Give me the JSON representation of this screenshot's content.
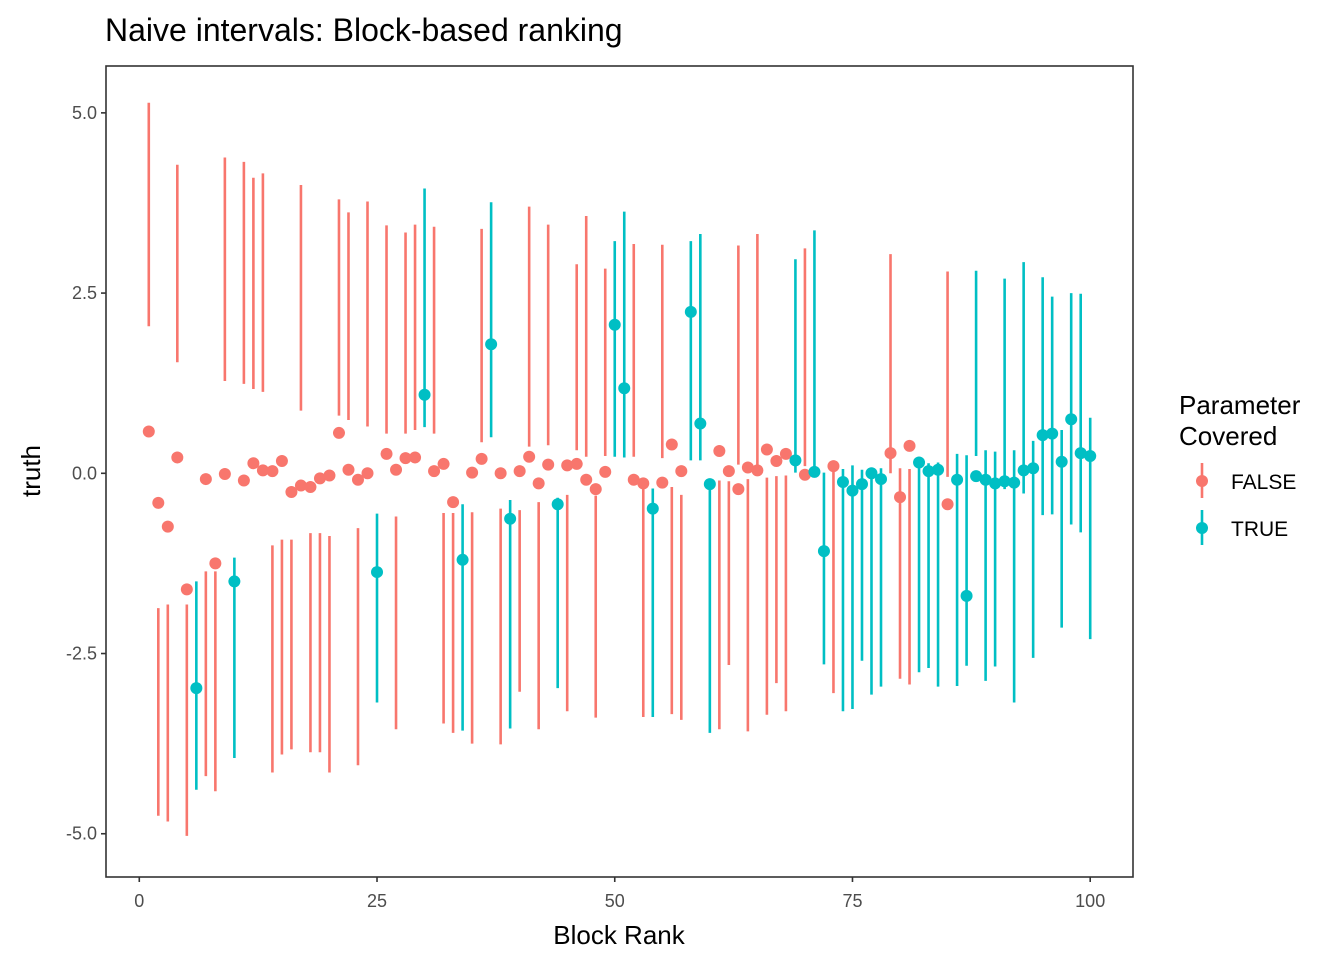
{
  "chart_data": {
    "type": "scatter",
    "subtype": "pointrange",
    "title": "Naive intervals: Block-based ranking",
    "xlabel": "Block Rank",
    "ylabel": "truth",
    "xlim": [
      -3.5,
      104.5
    ],
    "ylim": [
      -5.6,
      5.65
    ],
    "xticks": [
      0,
      25,
      50,
      75,
      100
    ],
    "xtick_labels": [
      "0",
      "25",
      "50",
      "75",
      "100"
    ],
    "yticks": [
      -5.0,
      -2.5,
      0.0,
      2.5,
      5.0
    ],
    "ytick_labels": [
      "-5.0",
      "-2.5",
      "0.0",
      "2.5",
      "5.0"
    ],
    "grid": false,
    "legend": {
      "title_lines": [
        "Parameter",
        "Covered"
      ],
      "placement": "right",
      "entries": [
        {
          "label": "FALSE",
          "color": "#F8766D"
        },
        {
          "label": "TRUE",
          "color": "#00BFC4"
        }
      ]
    },
    "colors": {
      "FALSE": "#F8766D",
      "TRUE": "#00BFC4"
    },
    "columns": [
      "rank",
      "truth",
      "lower",
      "upper",
      "covered"
    ],
    "points": [
      [
        1,
        0.58,
        2.04,
        5.14,
        false
      ],
      [
        2,
        -0.41,
        -4.75,
        -1.87,
        false
      ],
      [
        3,
        -0.74,
        -4.83,
        -1.82,
        false
      ],
      [
        4,
        0.22,
        1.54,
        4.28,
        false
      ],
      [
        5,
        -1.61,
        -5.03,
        -1.82,
        false
      ],
      [
        6,
        -2.98,
        -4.39,
        -1.5,
        true
      ],
      [
        7,
        -0.08,
        -4.2,
        -1.36,
        false
      ],
      [
        8,
        -1.25,
        -4.41,
        -1.36,
        false
      ],
      [
        9,
        -0.01,
        1.28,
        4.38,
        false
      ],
      [
        10,
        -1.5,
        -3.95,
        -1.17,
        true
      ],
      [
        11,
        -0.1,
        1.24,
        4.32,
        false
      ],
      [
        12,
        0.14,
        1.17,
        4.1,
        false
      ],
      [
        13,
        0.04,
        1.13,
        4.16,
        false
      ],
      [
        14,
        0.03,
        -4.15,
        -1.0,
        false
      ],
      [
        15,
        0.17,
        -3.9,
        -0.92,
        false
      ],
      [
        16,
        -0.26,
        -3.83,
        -0.92,
        false
      ],
      [
        17,
        -0.17,
        0.87,
        4.0,
        false
      ],
      [
        18,
        -0.19,
        -3.87,
        -0.83,
        false
      ],
      [
        19,
        -0.07,
        -3.87,
        -0.83,
        false
      ],
      [
        20,
        -0.03,
        -4.15,
        -0.87,
        false
      ],
      [
        21,
        0.56,
        0.8,
        3.8,
        false
      ],
      [
        22,
        0.05,
        0.74,
        3.62,
        false
      ],
      [
        23,
        -0.09,
        -4.05,
        -0.76,
        false
      ],
      [
        24,
        0.0,
        0.65,
        3.77,
        false
      ],
      [
        25,
        -1.37,
        -3.18,
        -0.56,
        true
      ],
      [
        26,
        0.27,
        0.55,
        3.44,
        false
      ],
      [
        27,
        0.05,
        -3.55,
        -0.6,
        false
      ],
      [
        28,
        0.21,
        0.55,
        3.34,
        false
      ],
      [
        29,
        0.22,
        0.6,
        3.45,
        false
      ],
      [
        30,
        1.09,
        0.64,
        3.95,
        true
      ],
      [
        31,
        0.03,
        0.55,
        3.42,
        false
      ],
      [
        32,
        0.13,
        -3.47,
        -0.55,
        false
      ],
      [
        33,
        -0.4,
        -3.6,
        -0.55,
        false
      ],
      [
        34,
        -1.2,
        -3.57,
        -0.43,
        true
      ],
      [
        35,
        0.01,
        -3.75,
        -0.54,
        false
      ],
      [
        36,
        0.2,
        0.43,
        3.39,
        false
      ],
      [
        37,
        1.79,
        0.5,
        3.76,
        true
      ],
      [
        38,
        0.0,
        -3.76,
        -0.49,
        false
      ],
      [
        39,
        -0.63,
        -3.54,
        -0.37,
        true
      ],
      [
        40,
        0.03,
        -3.03,
        -0.51,
        false
      ],
      [
        41,
        0.23,
        0.37,
        3.7,
        false
      ],
      [
        42,
        -0.14,
        -3.55,
        -0.4,
        false
      ],
      [
        43,
        0.12,
        0.39,
        3.45,
        false
      ],
      [
        44,
        -0.43,
        -2.98,
        -0.34,
        true
      ],
      [
        45,
        0.11,
        -3.3,
        -0.3,
        false
      ],
      [
        46,
        0.13,
        0.32,
        2.9,
        false
      ],
      [
        47,
        -0.09,
        0.23,
        3.57,
        false
      ],
      [
        48,
        -0.22,
        -3.39,
        -0.31,
        false
      ],
      [
        49,
        0.02,
        0.24,
        2.84,
        false
      ],
      [
        50,
        2.06,
        0.23,
        3.22,
        true
      ],
      [
        51,
        1.18,
        0.22,
        3.63,
        true
      ],
      [
        52,
        -0.09,
        0.23,
        3.18,
        false
      ],
      [
        53,
        -0.14,
        -3.38,
        -0.2,
        false
      ],
      [
        54,
        -0.49,
        -3.38,
        -0.21,
        true
      ],
      [
        55,
        -0.13,
        0.21,
        3.17,
        false
      ],
      [
        56,
        0.4,
        -3.34,
        -0.19,
        false
      ],
      [
        57,
        0.03,
        -3.42,
        -0.3,
        false
      ],
      [
        58,
        2.24,
        0.18,
        3.22,
        true
      ],
      [
        59,
        0.69,
        0.18,
        3.32,
        true
      ],
      [
        60,
        -0.15,
        -3.6,
        -0.12,
        true
      ],
      [
        61,
        0.31,
        -3.55,
        -0.1,
        false
      ],
      [
        62,
        0.03,
        -2.66,
        -0.11,
        false
      ],
      [
        63,
        -0.22,
        0.12,
        3.16,
        false
      ],
      [
        64,
        0.08,
        -3.58,
        -0.08,
        false
      ],
      [
        65,
        0.04,
        0.04,
        3.32,
        false
      ],
      [
        66,
        0.33,
        -3.35,
        -0.06,
        false
      ],
      [
        67,
        0.17,
        -2.91,
        -0.04,
        false
      ],
      [
        68,
        0.27,
        -3.3,
        -0.03,
        false
      ],
      [
        69,
        0.18,
        0.01,
        2.97,
        true
      ],
      [
        70,
        -0.02,
        0.1,
        3.12,
        false
      ],
      [
        71,
        0.02,
        -0.01,
        3.37,
        true
      ],
      [
        72,
        -1.08,
        -2.65,
        0.01,
        true
      ],
      [
        73,
        0.1,
        -3.05,
        0.08,
        false
      ],
      [
        74,
        -0.12,
        -3.3,
        0.06,
        true
      ],
      [
        75,
        -0.24,
        -3.27,
        0.11,
        true
      ],
      [
        76,
        -0.15,
        -2.6,
        0.05,
        true
      ],
      [
        77,
        0.0,
        -3.07,
        0.08,
        true
      ],
      [
        78,
        -0.08,
        -2.96,
        0.07,
        true
      ],
      [
        79,
        0.28,
        0.0,
        3.04,
        false
      ],
      [
        80,
        -0.33,
        -2.85,
        0.07,
        false
      ],
      [
        81,
        0.38,
        -2.93,
        0.06,
        false
      ],
      [
        82,
        0.15,
        -2.76,
        0.15,
        true
      ],
      [
        83,
        0.03,
        -2.7,
        0.14,
        true
      ],
      [
        84,
        0.05,
        -2.96,
        0.15,
        true
      ],
      [
        85,
        -0.43,
        -0.05,
        2.8,
        false
      ],
      [
        86,
        -0.09,
        -2.95,
        0.27,
        true
      ],
      [
        87,
        -1.7,
        -2.67,
        0.25,
        true
      ],
      [
        88,
        -0.04,
        0.24,
        2.81,
        true
      ],
      [
        89,
        -0.09,
        -2.88,
        0.32,
        true
      ],
      [
        90,
        -0.14,
        -2.68,
        0.3,
        true
      ],
      [
        91,
        -0.11,
        -0.22,
        2.7,
        true
      ],
      [
        92,
        -0.13,
        -3.18,
        0.32,
        true
      ],
      [
        93,
        0.04,
        -0.28,
        2.93,
        true
      ],
      [
        94,
        0.07,
        -2.56,
        0.45,
        true
      ],
      [
        95,
        0.53,
        -0.58,
        2.72,
        true
      ],
      [
        96,
        0.55,
        -0.57,
        2.45,
        true
      ],
      [
        97,
        0.16,
        -2.14,
        0.6,
        true
      ],
      [
        98,
        0.75,
        -0.71,
        2.5,
        true
      ],
      [
        99,
        0.28,
        -0.82,
        2.49,
        true
      ],
      [
        100,
        0.24,
        -2.3,
        0.77,
        true
      ]
    ]
  }
}
